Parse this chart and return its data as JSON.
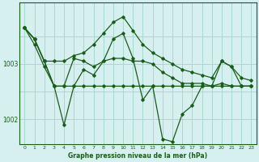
{
  "title": "Graphe pression niveau de la mer (hPa)",
  "background_color": "#d6f0ef",
  "line_color": "#1a5c1a",
  "grid_color": "#a8d8d0",
  "xlim": [
    -0.5,
    23.5
  ],
  "ylim": [
    1001.55,
    1004.1
  ],
  "yticks": [
    1002,
    1003
  ],
  "xticks": [
    0,
    1,
    2,
    3,
    4,
    5,
    6,
    7,
    8,
    9,
    10,
    11,
    12,
    13,
    14,
    15,
    16,
    17,
    18,
    19,
    20,
    21,
    22,
    23
  ],
  "series": [
    [
      1003.65,
      1003.45,
      1003.05,
      1003.05,
      1003.05,
      1003.15,
      1003.2,
      1003.35,
      1003.55,
      1003.75,
      1003.85,
      1003.6,
      1003.35,
      1003.2,
      1003.1,
      1003.0,
      1002.9,
      1002.85,
      1002.8,
      1002.75,
      1003.05,
      1002.95,
      1002.75,
      1002.7
    ],
    [
      1003.65,
      1003.45,
      1003.05,
      1002.6,
      1002.6,
      1003.1,
      1003.05,
      1002.95,
      1003.05,
      1003.1,
      1003.1,
      1003.05,
      1003.05,
      1003.0,
      1002.85,
      1002.75,
      1002.65,
      1002.65,
      1002.65,
      1002.6,
      1002.65,
      1002.6,
      1002.6,
      1002.6
    ],
    [
      1003.65,
      1003.45,
      1003.05,
      1002.6,
      1001.9,
      1002.6,
      1002.9,
      1002.8,
      1003.05,
      1003.45,
      1003.55,
      1003.1,
      1002.35,
      1002.6,
      1001.65,
      1001.6,
      1002.1,
      1002.25,
      1002.6,
      1002.6,
      1003.05,
      1002.95,
      1002.6,
      1002.6
    ],
    [
      1003.65,
      1003.35,
      1002.95,
      1002.6,
      1002.6,
      1002.6,
      1002.6,
      1002.6,
      1002.6,
      1002.6,
      1002.6,
      1002.6,
      1002.6,
      1002.6,
      1002.6,
      1002.6,
      1002.6,
      1002.6,
      1002.6,
      1002.6,
      1002.6,
      1002.6,
      1002.6,
      1002.6
    ]
  ]
}
